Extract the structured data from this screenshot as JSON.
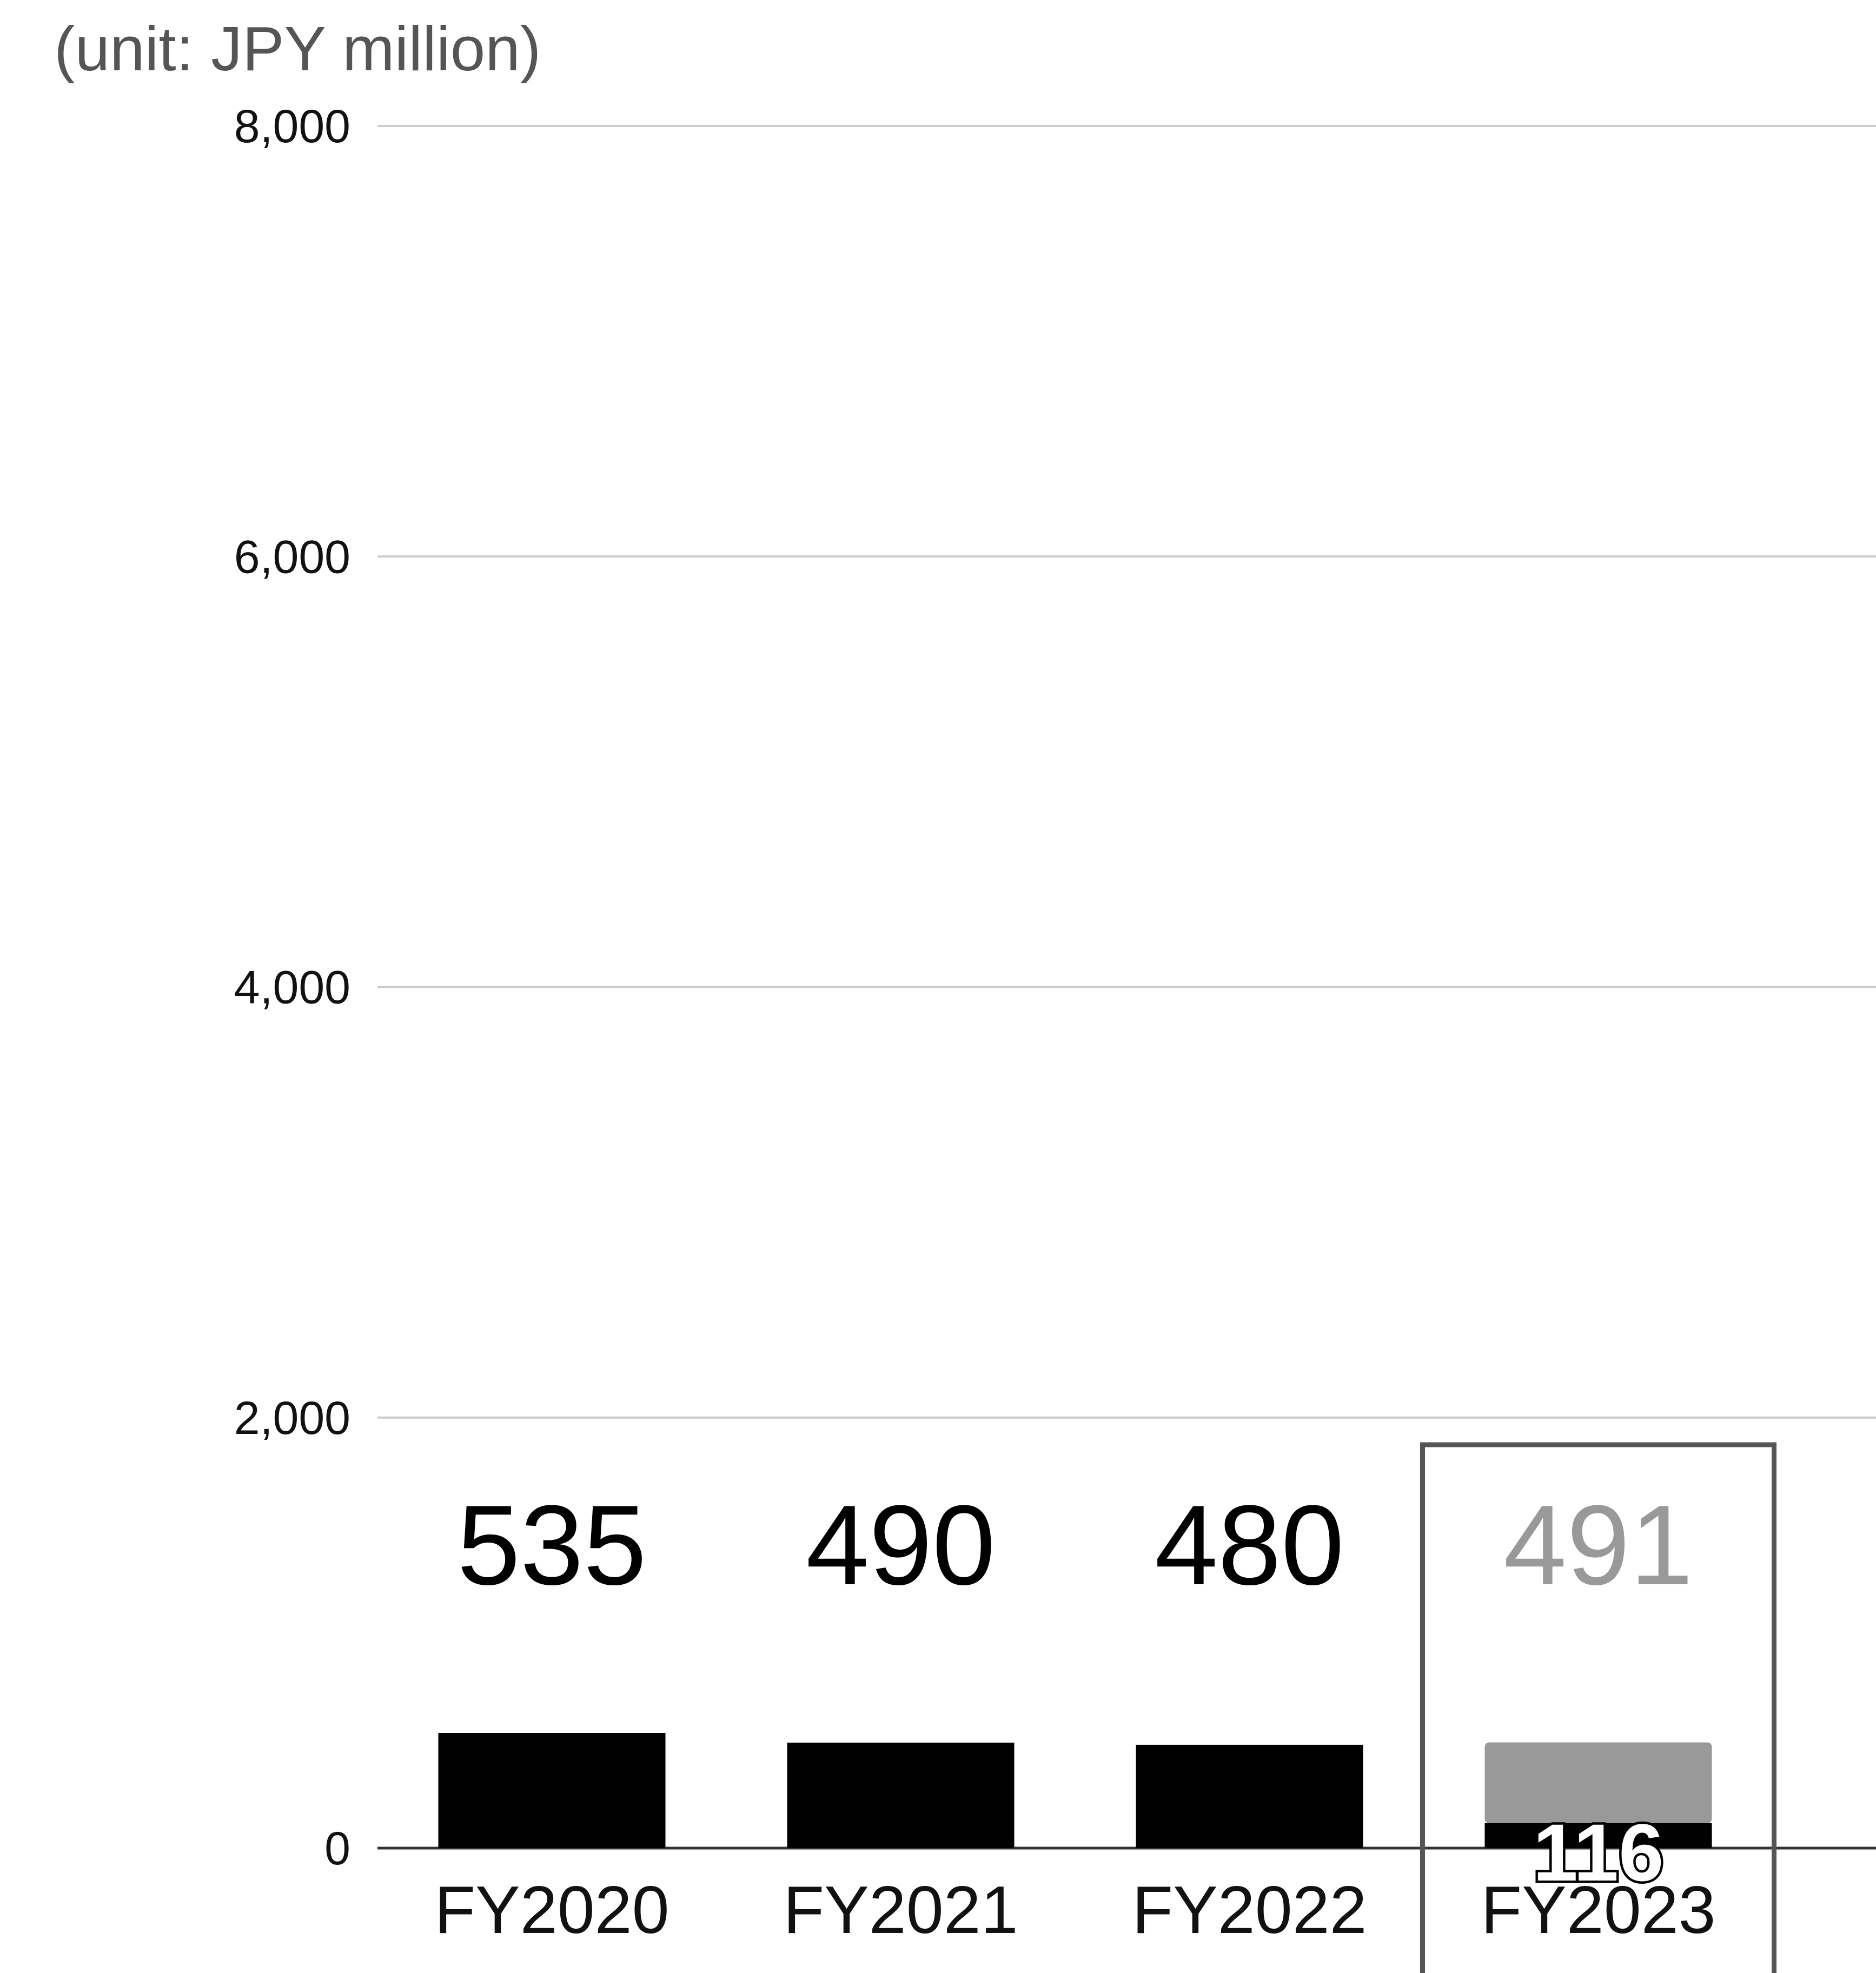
{
  "colors": {
    "actual": "#000000",
    "forecast": "#999999",
    "gridline": "#cccccc",
    "axis": "#333333",
    "highlight_box": "#555555"
  },
  "chart_data": {
    "type": "bar",
    "unit_label": "(unit: JPY million)",
    "categories": [
      "FY2020",
      "FY2021",
      "FY2022",
      "FY2023"
    ],
    "series": [
      {
        "values": [
          535,
          490,
          480,
          116
        ]
      },
      {
        "values": [
          0,
          0,
          0,
          375
        ]
      }
    ],
    "totals": [
      535,
      490,
      480,
      491
    ],
    "total_labels": [
      "535",
      "490",
      "480",
      "491"
    ],
    "inner_labels": [
      "",
      "",
      "",
      "116"
    ],
    "highlighted_category": "FY2023",
    "ylim": [
      0,
      8000
    ],
    "yticks": [
      0,
      2000,
      4000,
      6000,
      8000
    ],
    "ytick_labels": [
      "0",
      "2,000",
      "4,000",
      "6,000",
      "8,000"
    ],
    "grid": true,
    "legend": "none"
  }
}
